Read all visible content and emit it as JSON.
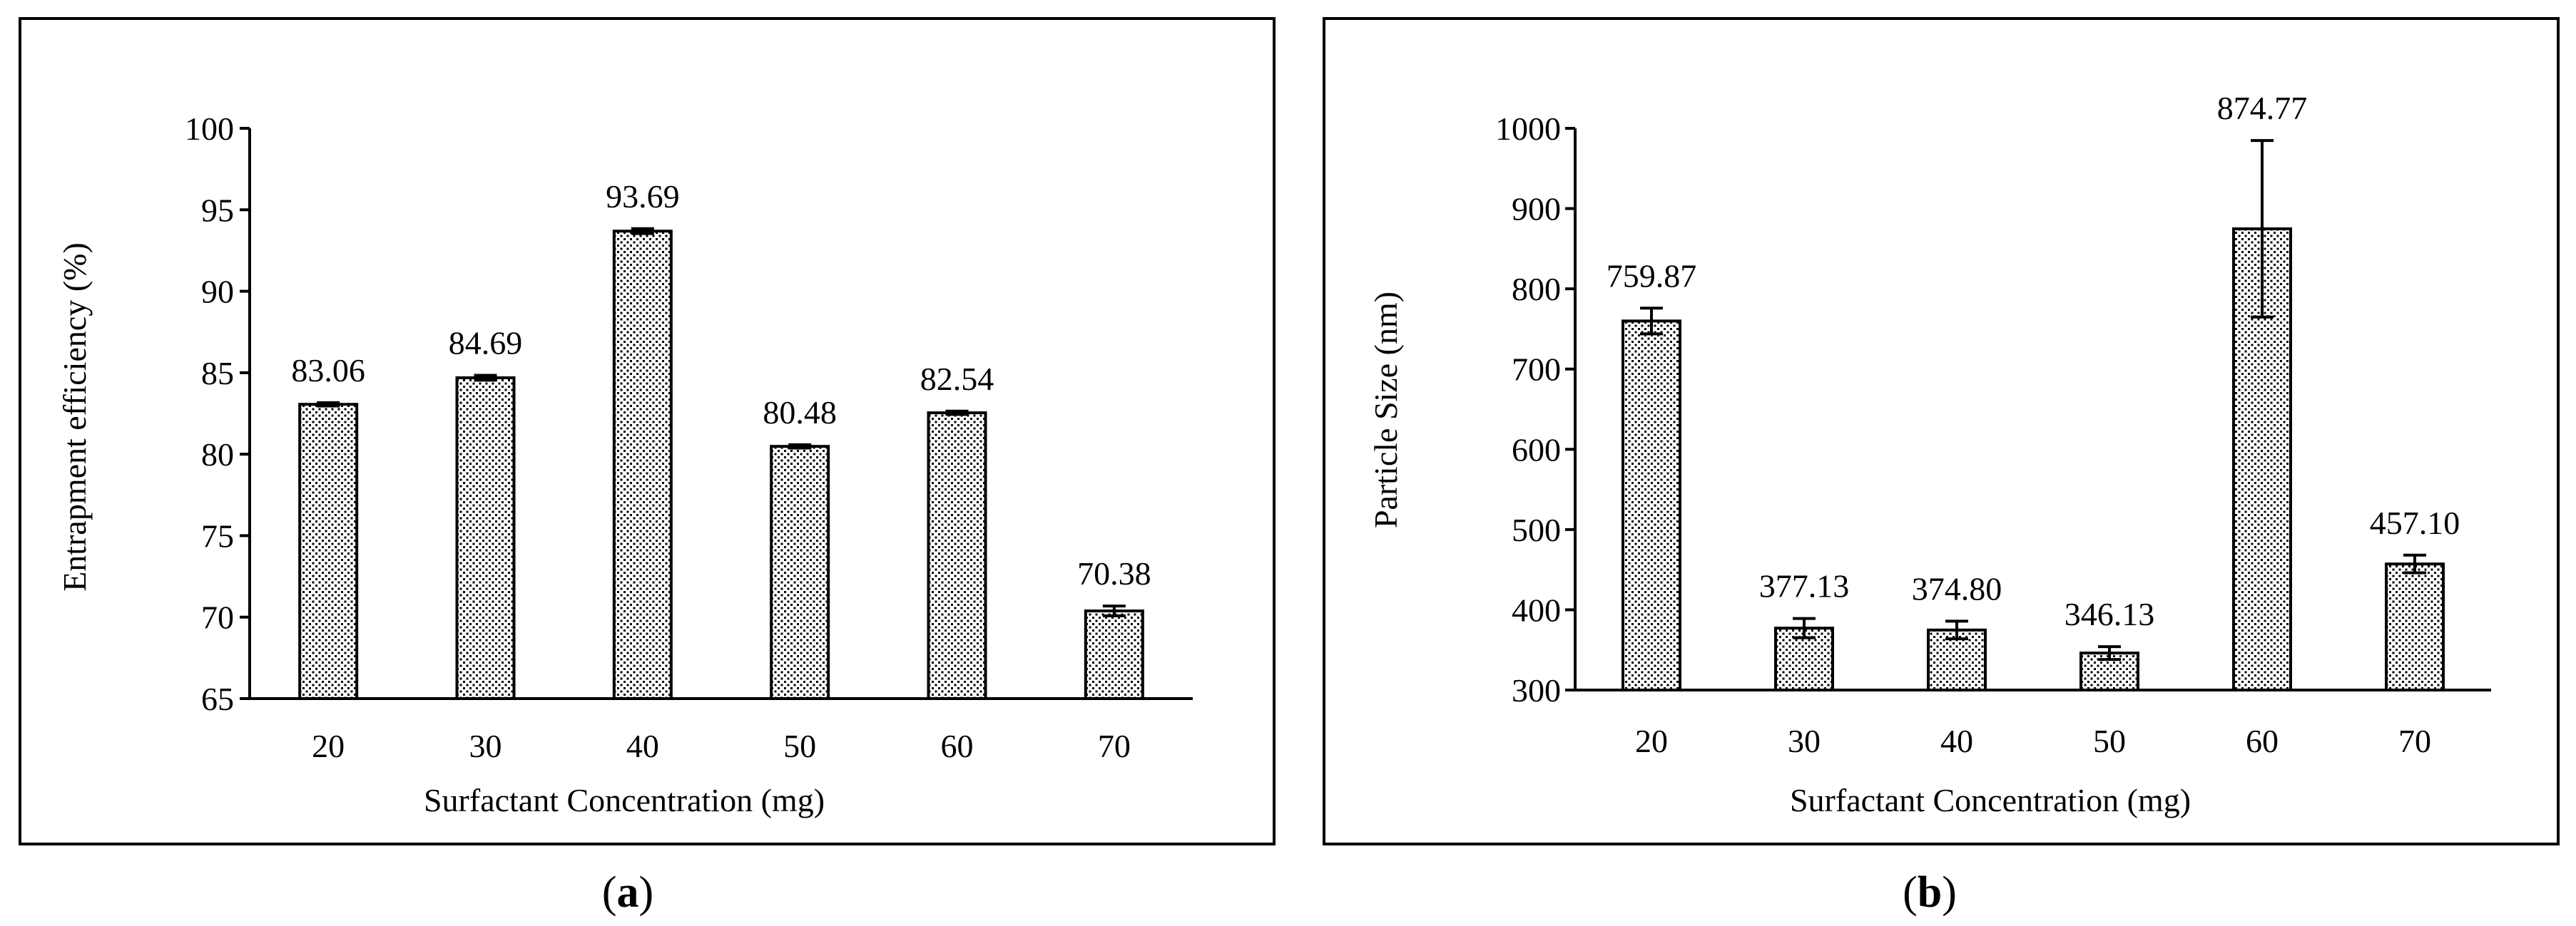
{
  "colors": {
    "bar_fill": "#ffffff",
    "bar_dots": "#000000",
    "axis": "#000000",
    "frame": "#000000"
  },
  "chart_data": [
    {
      "panel": "a",
      "type": "bar",
      "title": "",
      "xlabel": "Surfactant Concentration (mg)",
      "ylabel": "Entrapment efficiency (%)",
      "categories": [
        "20",
        "30",
        "40",
        "50",
        "60",
        "70"
      ],
      "values": [
        83.06,
        84.69,
        93.69,
        80.48,
        82.54,
        70.38
      ],
      "value_labels": [
        "83.06",
        "84.69",
        "93.69",
        "80.48",
        "82.54",
        "70.38"
      ],
      "errors": [
        0.1,
        0.15,
        0.15,
        0.1,
        0.1,
        0.3
      ],
      "ylim": [
        65,
        100
      ],
      "yticks": [
        65,
        70,
        75,
        80,
        85,
        90,
        95,
        100
      ],
      "grid": false,
      "caption_prefix": "(",
      "caption_letter": "a",
      "caption_suffix": ")"
    },
    {
      "panel": "b",
      "type": "bar",
      "title": "",
      "xlabel": "Surfactant Concentration (mg)",
      "ylabel": "Particle Size (nm)",
      "categories": [
        "20",
        "30",
        "40",
        "50",
        "60",
        "70"
      ],
      "values": [
        759.87,
        377.13,
        374.8,
        346.13,
        874.77,
        457.1
      ],
      "value_labels": [
        "759.87",
        "377.13",
        "374.80",
        "346.13",
        "874.77",
        "457.10"
      ],
      "errors": [
        16,
        12,
        11,
        8,
        110,
        11
      ],
      "ylim": [
        300,
        1000
      ],
      "yticks": [
        300,
        400,
        500,
        600,
        700,
        800,
        900,
        1000
      ],
      "grid": false,
      "caption_prefix": "(",
      "caption_letter": "b",
      "caption_suffix": ")"
    }
  ]
}
